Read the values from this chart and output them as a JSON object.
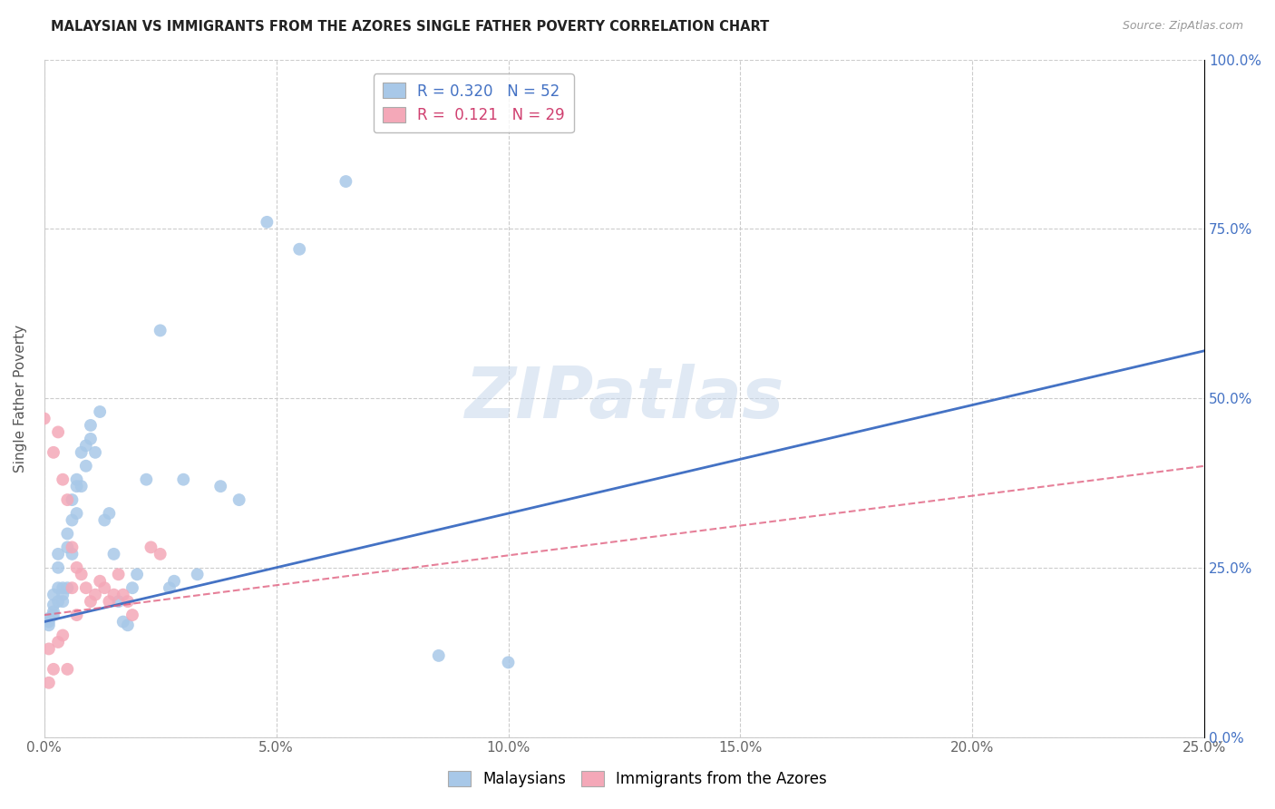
{
  "title": "MALAYSIAN VS IMMIGRANTS FROM THE AZORES SINGLE FATHER POVERTY CORRELATION CHART",
  "source": "Source: ZipAtlas.com",
  "ylabel": "Single Father Poverty",
  "xlim": [
    0,
    0.25
  ],
  "ylim": [
    0,
    1.0
  ],
  "xtick_labels": [
    "0.0%",
    "5.0%",
    "10.0%",
    "15.0%",
    "20.0%",
    "25.0%"
  ],
  "ytick_labels": [
    "0.0%",
    "25.0%",
    "50.0%",
    "75.0%",
    "100.0%"
  ],
  "xtick_values": [
    0,
    0.05,
    0.1,
    0.15,
    0.2,
    0.25
  ],
  "ytick_values": [
    0,
    0.25,
    0.5,
    0.75,
    1.0
  ],
  "r1": 0.32,
  "n1": 52,
  "r2": 0.121,
  "n2": 29,
  "color_blue": "#a8c8e8",
  "color_pink": "#f4a8b8",
  "color_blue_line": "#4472c4",
  "color_pink_line": "#e06080",
  "watermark": "ZIPatlas",
  "malaysians_x": [
    0.001,
    0.001,
    0.001,
    0.002,
    0.002,
    0.002,
    0.002,
    0.003,
    0.003,
    0.003,
    0.003,
    0.004,
    0.004,
    0.004,
    0.005,
    0.005,
    0.005,
    0.006,
    0.006,
    0.006,
    0.007,
    0.007,
    0.007,
    0.008,
    0.008,
    0.009,
    0.009,
    0.01,
    0.01,
    0.011,
    0.012,
    0.013,
    0.014,
    0.015,
    0.016,
    0.017,
    0.018,
    0.019,
    0.02,
    0.022,
    0.025,
    0.027,
    0.028,
    0.03,
    0.033,
    0.038,
    0.042,
    0.048,
    0.055,
    0.065,
    0.085,
    0.1
  ],
  "malaysians_y": [
    0.175,
    0.17,
    0.165,
    0.21,
    0.195,
    0.185,
    0.18,
    0.27,
    0.25,
    0.22,
    0.2,
    0.22,
    0.21,
    0.2,
    0.3,
    0.28,
    0.22,
    0.35,
    0.32,
    0.27,
    0.38,
    0.37,
    0.33,
    0.42,
    0.37,
    0.43,
    0.4,
    0.46,
    0.44,
    0.42,
    0.48,
    0.32,
    0.33,
    0.27,
    0.2,
    0.17,
    0.165,
    0.22,
    0.24,
    0.38,
    0.6,
    0.22,
    0.23,
    0.38,
    0.24,
    0.37,
    0.35,
    0.76,
    0.72,
    0.82,
    0.12,
    0.11
  ],
  "azores_x": [
    0.0,
    0.001,
    0.001,
    0.002,
    0.002,
    0.003,
    0.003,
    0.004,
    0.004,
    0.005,
    0.005,
    0.006,
    0.006,
    0.007,
    0.007,
    0.008,
    0.009,
    0.01,
    0.011,
    0.012,
    0.013,
    0.014,
    0.015,
    0.016,
    0.017,
    0.018,
    0.019,
    0.023,
    0.025
  ],
  "azores_y": [
    0.47,
    0.13,
    0.08,
    0.42,
    0.1,
    0.45,
    0.14,
    0.38,
    0.15,
    0.35,
    0.1,
    0.28,
    0.22,
    0.25,
    0.18,
    0.24,
    0.22,
    0.2,
    0.21,
    0.23,
    0.22,
    0.2,
    0.21,
    0.24,
    0.21,
    0.2,
    0.18,
    0.28,
    0.27
  ],
  "blue_line_x": [
    0.0,
    0.25
  ],
  "blue_line_y": [
    0.17,
    0.57
  ],
  "pink_line_x": [
    0.0,
    0.25
  ],
  "pink_line_y": [
    0.18,
    0.4
  ]
}
